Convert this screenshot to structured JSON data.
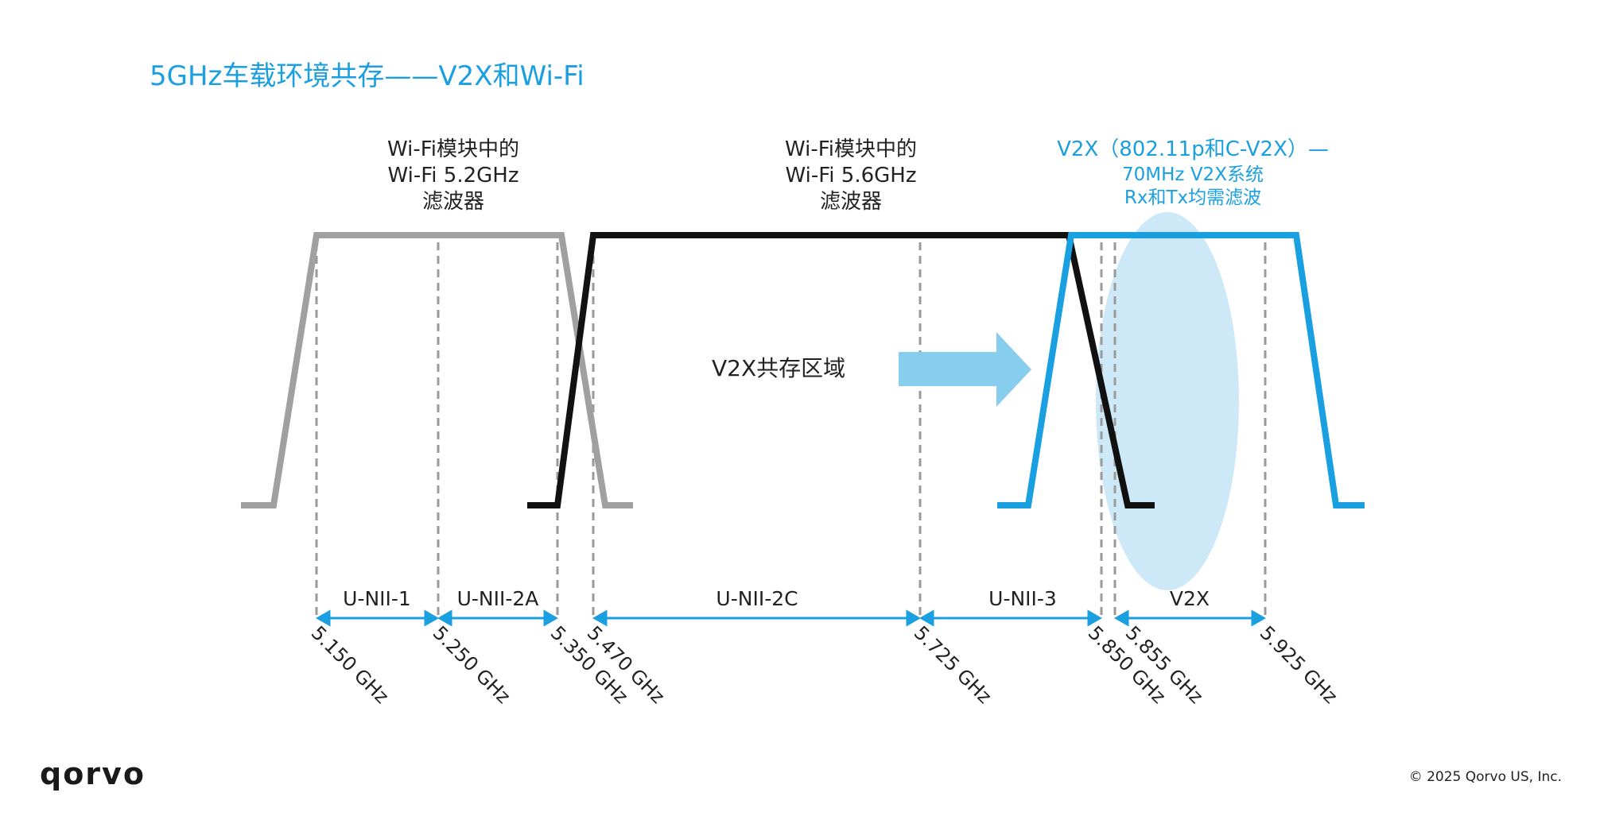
{
  "title": "5GHz车载环境共存——V2X和Wi-Fi",
  "filters": {
    "wifi52": [
      "Wi-Fi模块中的",
      "Wi-Fi 5.2GHz",
      "滤波器"
    ],
    "wifi56": [
      "Wi-Fi模块中的",
      "Wi-Fi 5.6GHz",
      "滤波器"
    ],
    "v2x": {
      "line1": "V2X（802.11p和C-V2X）—",
      "line2": "70MHz V2X系统",
      "line3": "Rx和Tx均需滤波"
    }
  },
  "coexistence_label": "V2X共存区域",
  "bands": [
    "U-NII-1",
    "U-NII-2A",
    "U-NII-2C",
    "U-NII-3",
    "V2X"
  ],
  "frequencies": [
    "5.150 GHz",
    "5.250 GHz",
    "5.350 GHz",
    "5.470 GHz",
    "5.725 GHz",
    "5.850 GHz",
    "5.855 GHz",
    "5.925 GHz"
  ],
  "colors": {
    "accent": "#1a9fe0",
    "wifi52_filter": "#a0a0a0",
    "wifi56_filter": "#111111",
    "v2x_filter": "#1a9fe0",
    "coexistence_highlight": "#cde9f8",
    "arrow": "#86cdee"
  },
  "footer": {
    "logo": "qorvo",
    "copyright": "© 2025 Qorvo US, Inc."
  }
}
